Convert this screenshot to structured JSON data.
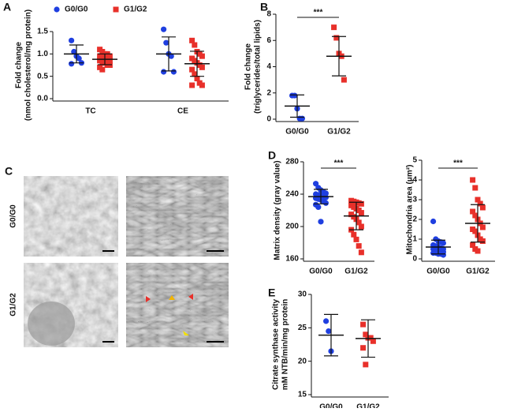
{
  "chart_data": [
    {
      "type": "grouped_dot",
      "panel": "A",
      "ylabel": [
        "Fold change",
        "(nmol cholesterol/mg protein)"
      ],
      "categories": [
        "TC",
        "CE"
      ],
      "series": [
        {
          "name": "G0/G0",
          "color": "#1f3fe0",
          "marker": "circle",
          "values": [
            [
              1.3,
              1.05,
              0.95,
              0.9,
              0.8,
              0.78
            ],
            [
              1.55,
              1.25,
              1.0,
              0.95,
              0.6,
              0.6
            ]
          ],
          "mean": [
            1.0,
            1.0
          ],
          "sd": [
            0.2,
            0.38
          ]
        },
        {
          "name": "G1/G2",
          "color": "#e8302a",
          "marker": "square",
          "values": [
            [
              1.1,
              1.05,
              1.0,
              1.0,
              0.95,
              0.95,
              0.9,
              0.9,
              0.9,
              0.85,
              0.85,
              0.8,
              0.8,
              0.75,
              0.75,
              0.7,
              0.65
            ],
            [
              1.3,
              1.2,
              1.05,
              1.0,
              0.95,
              0.9,
              0.85,
              0.8,
              0.75,
              0.7,
              0.65,
              0.55,
              0.45,
              0.35,
              0.3,
              0.3
            ]
          ],
          "mean": [
            0.88,
            0.78
          ],
          "sd": [
            0.12,
            0.28
          ]
        }
      ],
      "ylim": [
        0,
        1.5
      ],
      "yticks": [
        {
          "value": 0,
          "label": "0.0"
        },
        {
          "value": 0.5,
          "label": "0.5"
        },
        {
          "value": 1,
          "label": "1.0"
        },
        {
          "value": 1.5,
          "label": "1.5"
        }
      ],
      "legend": "top"
    },
    {
      "type": "dot",
      "panel": "B",
      "ylabel": [
        "Fold change",
        "(triglycerides/total lipids)"
      ],
      "categories": [
        "G0/G0",
        "G1/G2"
      ],
      "colors": [
        "#1f3fe0",
        "#e8302a"
      ],
      "markers": [
        "circle",
        "square"
      ],
      "values": [
        [
          1.8,
          1.8,
          0.8,
          0.05,
          0.05
        ],
        [
          7.0,
          6.2,
          5.0,
          4.8,
          3.0
        ]
      ],
      "mean": [
        1.0,
        4.8
      ],
      "sd": [
        0.85,
        1.5
      ],
      "ylim": [
        0,
        8
      ],
      "yticks": [
        0,
        2,
        4,
        6,
        8
      ],
      "significance": "***"
    },
    {
      "type": "dot",
      "panel": "D",
      "ylabel": [
        "Matrix density (gray value)"
      ],
      "categories": [
        "G0/G0",
        "G1/G2"
      ],
      "colors": [
        "#1f3fe0",
        "#e8302a"
      ],
      "markers": [
        "circle",
        "square"
      ],
      "values": [
        [
          253,
          248,
          245,
          243,
          241,
          240,
          239,
          238,
          237,
          236,
          235,
          234,
          233,
          231,
          229,
          227,
          224,
          206
        ],
        [
          232,
          231,
          230,
          229,
          228,
          226,
          224,
          222,
          220,
          217,
          215,
          212,
          209,
          205,
          200,
          196,
          190,
          184,
          176,
          168
        ]
      ],
      "mean": [
        237,
        213
      ],
      "sd": [
        9,
        17
      ],
      "ylim": [
        160,
        280
      ],
      "yticks": [
        160,
        200,
        240,
        280
      ],
      "significance": "***"
    },
    {
      "type": "dot",
      "ylabel": [
        "Mitochondria area (μm²)"
      ],
      "categories": [
        "G0/G0",
        "G1/G2"
      ],
      "colors": [
        "#1f3fe0",
        "#e8302a"
      ],
      "markers": [
        "circle",
        "square"
      ],
      "values": [
        [
          1.9,
          1.0,
          0.9,
          0.85,
          0.8,
          0.7,
          0.65,
          0.6,
          0.55,
          0.5,
          0.5,
          0.45,
          0.4,
          0.4,
          0.35,
          0.3,
          0.3,
          0.25,
          0.25,
          0.2
        ],
        [
          4.0,
          3.6,
          3.0,
          2.8,
          2.6,
          2.4,
          2.2,
          2.0,
          1.8,
          1.6,
          1.5,
          1.4,
          1.2,
          1.0,
          0.9,
          0.7,
          0.5,
          0.4
        ]
      ],
      "mean": [
        0.6,
        1.8
      ],
      "sd": [
        0.35,
        0.95
      ],
      "ylim": [
        0,
        5
      ],
      "yticks": [
        0,
        1,
        2,
        3,
        4,
        5
      ],
      "significance": "***"
    },
    {
      "type": "dot",
      "panel": "E",
      "ylabel": [
        "Citrate synthase activity",
        "mM NTB/min/mg protein"
      ],
      "categories": [
        "G0/G0",
        "G1/G2"
      ],
      "colors": [
        "#1f3fe0",
        "#e8302a"
      ],
      "markers": [
        "circle",
        "square"
      ],
      "values": [
        [
          26,
          24.5,
          21.5
        ],
        [
          25.5,
          24,
          23.5,
          23.5,
          23,
          22,
          19.5
        ]
      ],
      "mean": [
        23.9,
        23.4
      ],
      "sd": [
        3.1,
        2.8
      ],
      "ylim": [
        15,
        30
      ],
      "yticks": [
        15,
        20,
        25,
        30
      ]
    }
  ],
  "micrograph_panel": {
    "panel": "C",
    "rows": [
      "G0/G0",
      "G1/G2"
    ]
  }
}
